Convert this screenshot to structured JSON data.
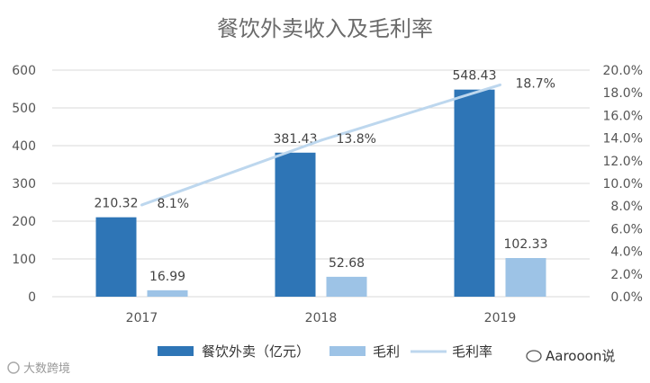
{
  "chart_data": {
    "type": "bar+line",
    "title": "餐饮外卖收入及毛利率",
    "categories": [
      "2017",
      "2018",
      "2019"
    ],
    "series": [
      {
        "name": "餐饮外卖（亿元）",
        "type": "bar",
        "axis": "left",
        "values": [
          210.32,
          381.43,
          548.43
        ],
        "labels": [
          "210.32",
          "381.43",
          "548.43"
        ],
        "color": "#2e75b6"
      },
      {
        "name": "毛利",
        "type": "bar",
        "axis": "left",
        "values": [
          16.99,
          52.68,
          102.33
        ],
        "labels": [
          "16.99",
          "52.68",
          "102.33"
        ],
        "color": "#9dc3e6"
      },
      {
        "name": "毛利率",
        "type": "line",
        "axis": "right",
        "values": [
          8.1,
          13.8,
          18.7
        ],
        "labels": [
          "8.1%",
          "13.8%",
          "18.7%"
        ],
        "color": "#bdd7ee"
      }
    ],
    "left_axis": {
      "min": 0,
      "max": 600,
      "ticks": [
        "0",
        "100",
        "200",
        "300",
        "400",
        "500",
        "600"
      ]
    },
    "right_axis": {
      "min": 0,
      "max": 20,
      "ticks": [
        "0.0%",
        "2.0%",
        "4.0%",
        "6.0%",
        "8.0%",
        "10.0%",
        "12.0%",
        "14.0%",
        "16.0%",
        "18.0%",
        "20.0%"
      ]
    },
    "grid": true,
    "legend_position": "bottom"
  },
  "watermark": {
    "left_text": "大数跨境",
    "right_text": "Aarooon说"
  }
}
